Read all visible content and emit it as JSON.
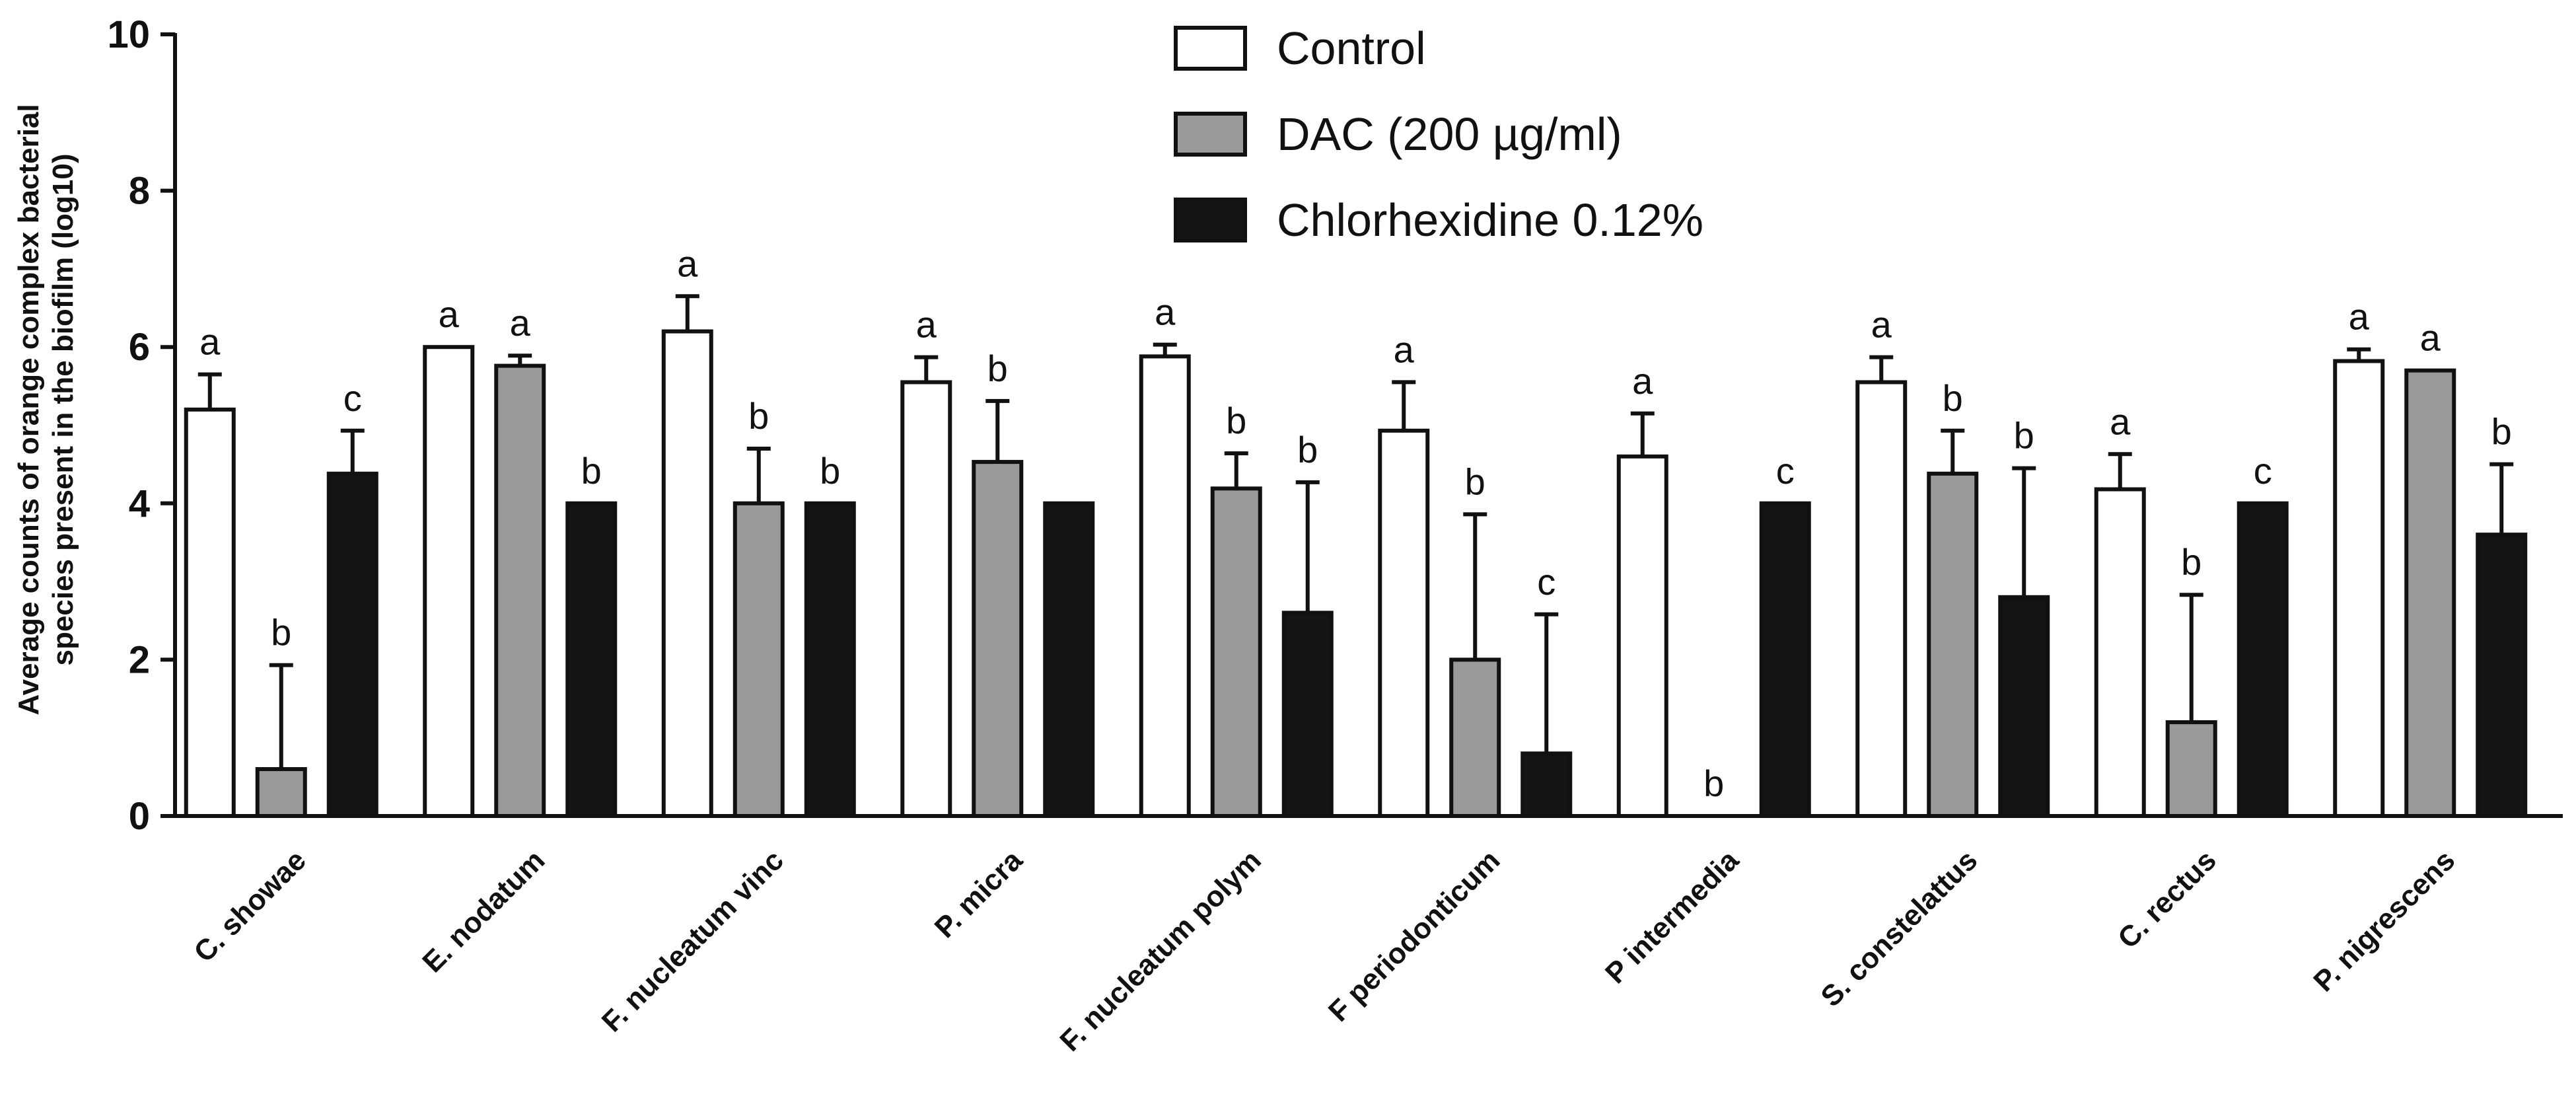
{
  "chart_data": {
    "type": "bar",
    "title": "",
    "xlabel": "",
    "ylabel_lines": [
      "Average counts of orange complex bacterial",
      "species present in the biofilm  (log10)"
    ],
    "ylim": [
      0,
      10
    ],
    "yticks": [
      "0",
      "2",
      "4",
      "6",
      "8",
      "10"
    ],
    "legend_position": "top-center",
    "grid": false,
    "categories": [
      "C. showae",
      "E. nodatum",
      "F. nucleatum vinc",
      "P. micra",
      "F. nucleatum polym",
      "F periodonticum",
      "P intermedia",
      "S. constelattus",
      "C. rectus",
      "P. nigrescens"
    ],
    "series": [
      {
        "name": "Control",
        "color": "#ffffff",
        "values": [
          5.2,
          6.0,
          6.2,
          5.55,
          5.88,
          4.93,
          4.6,
          5.55,
          4.18,
          5.82
        ],
        "error": [
          0.45,
          0,
          0.45,
          0.32,
          0.15,
          0.62,
          0.55,
          0.32,
          0.45,
          0.15
        ],
        "letters": [
          "a",
          "a",
          "a",
          "a",
          "a",
          "a",
          "a",
          "a",
          "a",
          "a"
        ]
      },
      {
        "name": "DAC (200 µg/ml)",
        "color": "#9a9a9a",
        "values": [
          0.6,
          5.76,
          4.0,
          4.53,
          4.19,
          2.0,
          0,
          4.38,
          1.2,
          5.7
        ],
        "error": [
          1.33,
          0.13,
          0.7,
          0.78,
          0.45,
          1.86,
          0,
          0.55,
          1.63,
          0
        ],
        "letters": [
          "b",
          "a",
          "b",
          "b",
          "b",
          "b",
          "b",
          "b",
          "b",
          "a"
        ]
      },
      {
        "name": "Chlorhexidine 0.12%",
        "color": "#141414",
        "values": [
          4.38,
          4.0,
          4.0,
          4.0,
          2.6,
          0.8,
          4.0,
          2.8,
          4.0,
          3.6
        ],
        "error": [
          0.55,
          0,
          0,
          0,
          1.67,
          1.78,
          0,
          1.65,
          0,
          0.9
        ],
        "letters": [
          "c",
          "b",
          "b",
          "",
          "b",
          "c",
          "c",
          "b",
          "c",
          "b"
        ]
      }
    ]
  }
}
